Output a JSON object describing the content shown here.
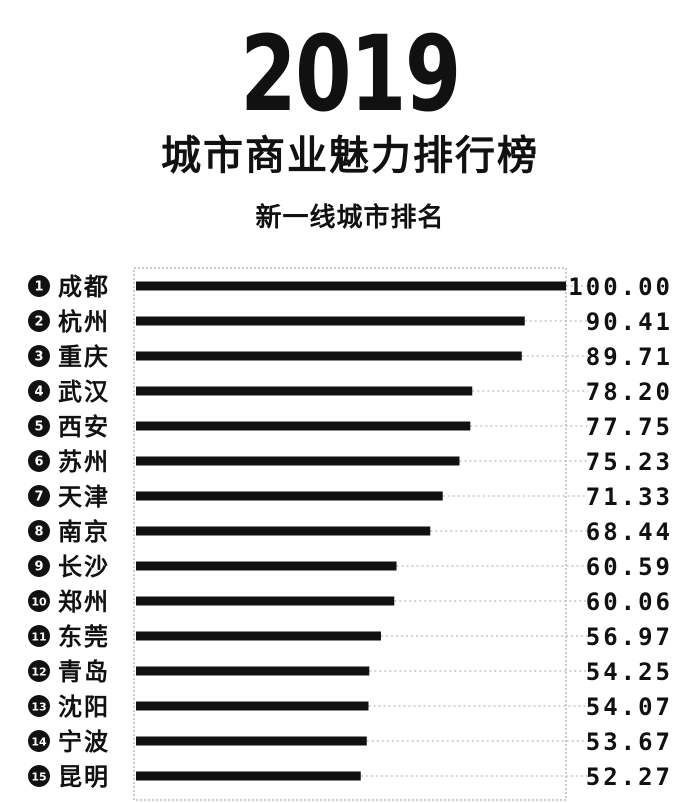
{
  "header": {
    "year": "2019",
    "title": "城市商业魅力排行榜",
    "subtitle": "新一线城市排名"
  },
  "chart_data": {
    "type": "bar",
    "orientation": "horizontal",
    "title": "城市商业魅力排行榜",
    "subtitle": "新一线城市排名",
    "xlim": [
      0,
      100
    ],
    "grid": false,
    "legend": "none",
    "bar_color": "#111111",
    "ranks": [
      "1",
      "2",
      "3",
      "4",
      "5",
      "6",
      "7",
      "8",
      "9",
      "10",
      "11",
      "12",
      "13",
      "14",
      "15"
    ],
    "categories": [
      "成都",
      "杭州",
      "重庆",
      "武汉",
      "西安",
      "苏州",
      "天津",
      "南京",
      "长沙",
      "郑州",
      "东莞",
      "青岛",
      "沈阳",
      "宁波",
      "昆明"
    ],
    "value_labels": [
      "100.00",
      "90.41",
      "89.71",
      "78.20",
      "77.75",
      "75.23",
      "71.33",
      "68.44",
      "60.59",
      "60.06",
      "56.97",
      "54.25",
      "54.07",
      "53.67",
      "52.27"
    ],
    "values": [
      100.0,
      90.41,
      89.71,
      78.2,
      77.75,
      75.23,
      71.33,
      68.44,
      60.59,
      60.06,
      56.97,
      54.25,
      54.07,
      53.67,
      52.27
    ]
  }
}
